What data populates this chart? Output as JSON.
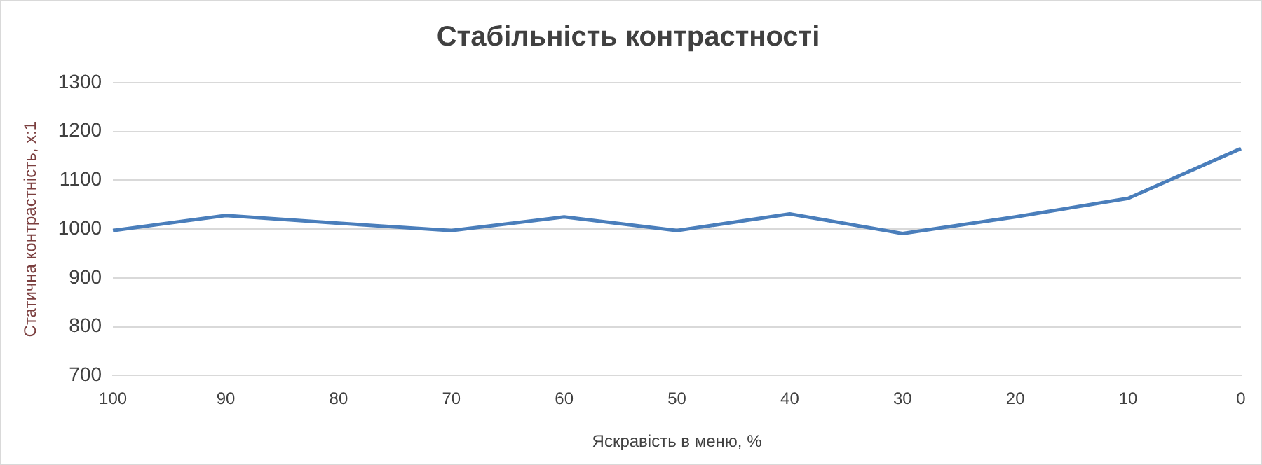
{
  "chart_data": {
    "type": "line",
    "title": "Стабільність контрастності",
    "xlabel": "Яскравість в меню, %",
    "ylabel": "Статична контрастність, x:1",
    "categories": [
      "100",
      "90",
      "80",
      "70",
      "60",
      "50",
      "40",
      "30",
      "20",
      "10",
      "0"
    ],
    "series": [
      {
        "color": "#4a7ebb",
        "values": [
          997,
          1028,
          1012,
          997,
          1025,
          997,
          1031,
          991,
          1025,
          1063,
          1165
        ]
      }
    ],
    "ylim": [
      700,
      1300
    ],
    "yticks": [
      700,
      800,
      900,
      1000,
      1100,
      1200,
      1300
    ],
    "grid": "y",
    "legend": false,
    "marker": "none",
    "line_style": "solid"
  }
}
